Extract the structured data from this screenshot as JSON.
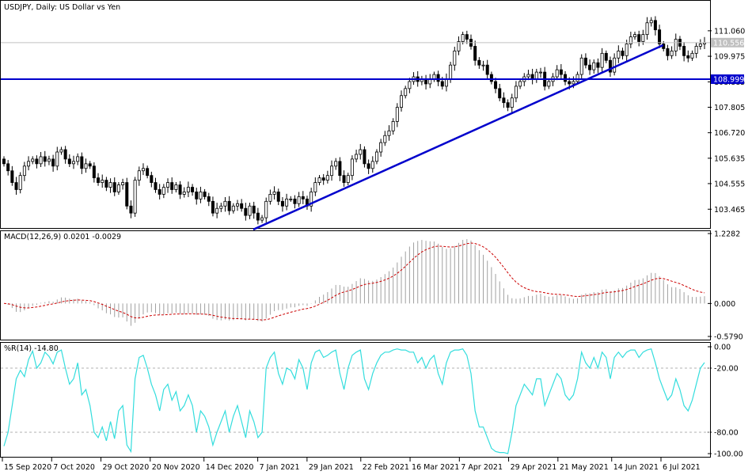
{
  "chart_data": [
    {
      "type": "candlestick",
      "title": "USDJPY, Daily:  US Dollar vs Yen",
      "ylim": [
        102.8,
        112.1
      ],
      "y_ticks": [
        "111.060",
        "109.975",
        "108.885",
        "107.805",
        "106.720",
        "105.635",
        "104.555",
        "103.465"
      ],
      "current_price_label": "110.556",
      "current_price": 110.556,
      "horizontal_line": {
        "value": 108.999,
        "label": "108.999",
        "color": "#0000cc"
      },
      "trend_line": {
        "from": {
          "date": "2021-01-05",
          "price": 102.6
        },
        "to": {
          "date": "2021-07-07",
          "price": 110.45
        },
        "color": "#0000cc"
      },
      "candles": {
        "start_date": "2020-09-15",
        "close": [
          105.4,
          105.1,
          104.6,
          104.3,
          104.9,
          105.3,
          105.5,
          105.6,
          105.4,
          105.7,
          105.5,
          105.6,
          105.3,
          105.9,
          106.0,
          105.6,
          105.4,
          105.5,
          105.7,
          105.2,
          105.4,
          105.3,
          104.8,
          104.6,
          104.7,
          104.4,
          104.6,
          104.2,
          104.5,
          104.6,
          103.6,
          103.3,
          104.7,
          105.1,
          105.2,
          104.9,
          104.6,
          104.3,
          104.1,
          104.4,
          104.6,
          104.3,
          104.5,
          104.1,
          104.2,
          104.4,
          104.2,
          103.9,
          104.2,
          104.0,
          103.8,
          103.3,
          103.5,
          103.6,
          103.8,
          103.4,
          103.6,
          103.7,
          103.5,
          103.2,
          103.6,
          103.3,
          103.0,
          103.1,
          103.8,
          104.1,
          104.2,
          103.8,
          103.6,
          103.9,
          103.9,
          103.7,
          104.0,
          103.9,
          103.6,
          104.2,
          104.6,
          104.8,
          104.7,
          104.9,
          105.3,
          105.5,
          104.9,
          104.6,
          104.9,
          105.6,
          105.8,
          106.0,
          105.4,
          105.2,
          105.5,
          105.9,
          106.3,
          106.6,
          106.8,
          107.2,
          107.8,
          108.3,
          108.6,
          108.9,
          109.1,
          108.9,
          109.0,
          108.8,
          109.0,
          109.2,
          108.9,
          108.7,
          109.0,
          109.6,
          110.2,
          110.6,
          110.9,
          110.7,
          110.4,
          109.8,
          109.6,
          109.6,
          109.2,
          108.9,
          108.6,
          108.2,
          108.0,
          107.8,
          108.2,
          108.7,
          108.9,
          109.1,
          109.2,
          109.0,
          109.3,
          109.3,
          108.7,
          108.9,
          109.1,
          109.4,
          109.2,
          108.9,
          108.8,
          108.9,
          109.2,
          109.9,
          109.6,
          109.4,
          109.7,
          109.5,
          110.1,
          109.8,
          109.3,
          109.9,
          110.2,
          110.0,
          110.5,
          110.8,
          110.9,
          110.6,
          110.9,
          111.4,
          111.5,
          111.1,
          110.5,
          110.3,
          110.0,
          110.2,
          110.7,
          110.4,
          110.0,
          109.9,
          110.1,
          110.4,
          110.5,
          110.556
        ]
      }
    },
    {
      "type": "histogram+line",
      "title": "MACD(12,26,9) 0.0201 -0.0029",
      "ylim": [
        -0.579,
        1.2282
      ],
      "y_ticks": [
        "1.2282",
        "0.000",
        "-0.5790"
      ],
      "zero_label": "0.000",
      "signal_color": "#cc0000",
      "histogram_color": "#a0a0a0"
    },
    {
      "type": "line",
      "title": "%R(14) -14.80",
      "ylim": [
        -100,
        0
      ],
      "y_ticks": [
        "0.00",
        "-20.00",
        "-80.00",
        "-100.00"
      ],
      "levels": [
        -20,
        -80
      ],
      "line_color": "#33dddd",
      "values": [
        -93,
        -80,
        -55,
        -30,
        -22,
        -28,
        -12,
        -4,
        -20,
        -15,
        -5,
        -9,
        -16,
        -5,
        -3,
        -20,
        -35,
        -30,
        -15,
        -45,
        -40,
        -55,
        -80,
        -85,
        -75,
        -88,
        -70,
        -86,
        -60,
        -55,
        -92,
        -98,
        -30,
        -10,
        -8,
        -20,
        -35,
        -45,
        -60,
        -40,
        -35,
        -50,
        -42,
        -60,
        -55,
        -45,
        -55,
        -80,
        -60,
        -65,
        -75,
        -92,
        -80,
        -70,
        -60,
        -80,
        -65,
        -55,
        -70,
        -85,
        -60,
        -70,
        -85,
        -80,
        -20,
        -10,
        -5,
        -25,
        -35,
        -20,
        -22,
        -30,
        -12,
        -20,
        -40,
        -15,
        -5,
        -3,
        -10,
        -8,
        -5,
        -3,
        -25,
        -40,
        -20,
        -8,
        -5,
        -3,
        -30,
        -40,
        -25,
        -15,
        -8,
        -5,
        -5,
        -3,
        -2,
        -3,
        -3,
        -5,
        -5,
        -15,
        -10,
        -20,
        -12,
        -8,
        -25,
        -35,
        -15,
        -5,
        -3,
        -3,
        -2,
        -8,
        -25,
        -60,
        -75,
        -75,
        -85,
        -95,
        -98,
        -99,
        -99,
        -100,
        -80,
        -55,
        -45,
        -35,
        -40,
        -45,
        -30,
        -30,
        -55,
        -45,
        -35,
        -25,
        -30,
        -45,
        -50,
        -45,
        -30,
        -5,
        -15,
        -20,
        -10,
        -20,
        -5,
        -10,
        -30,
        -10,
        -5,
        -10,
        -5,
        -3,
        -3,
        -10,
        -5,
        -3,
        -2,
        -15,
        -30,
        -40,
        -50,
        -45,
        -30,
        -40,
        -55,
        -60,
        -50,
        -35,
        -20,
        -14.8
      ]
    }
  ],
  "x_axis": {
    "labels": [
      "15 Sep 2020",
      "7 Oct 2020",
      "29 Oct 2020",
      "20 Nov 2020",
      "14 Dec 2020",
      "7 Jan 2021",
      "29 Jan 2021",
      "22 Feb 2021",
      "16 Mar 2021",
      "7 Apr 2021",
      "29 Apr 2021",
      "21 May 2021",
      "14 Jun 2021",
      "6 Jul 2021"
    ],
    "dates": [
      "2020-09-15",
      "2020-10-07",
      "2020-10-29",
      "2020-11-20",
      "2020-12-14",
      "2021-01-07",
      "2021-01-29",
      "2021-02-22",
      "2021-03-16",
      "2021-04-07",
      "2021-04-29",
      "2021-05-21",
      "2021-06-14",
      "2021-07-06"
    ]
  },
  "colors": {
    "price_line": "#0000cc",
    "candle_bull_body": "#ffffff",
    "candle_bear_body": "#000000",
    "label_box_price": "#c0c0c0",
    "label_box_line": "#0000cc"
  }
}
